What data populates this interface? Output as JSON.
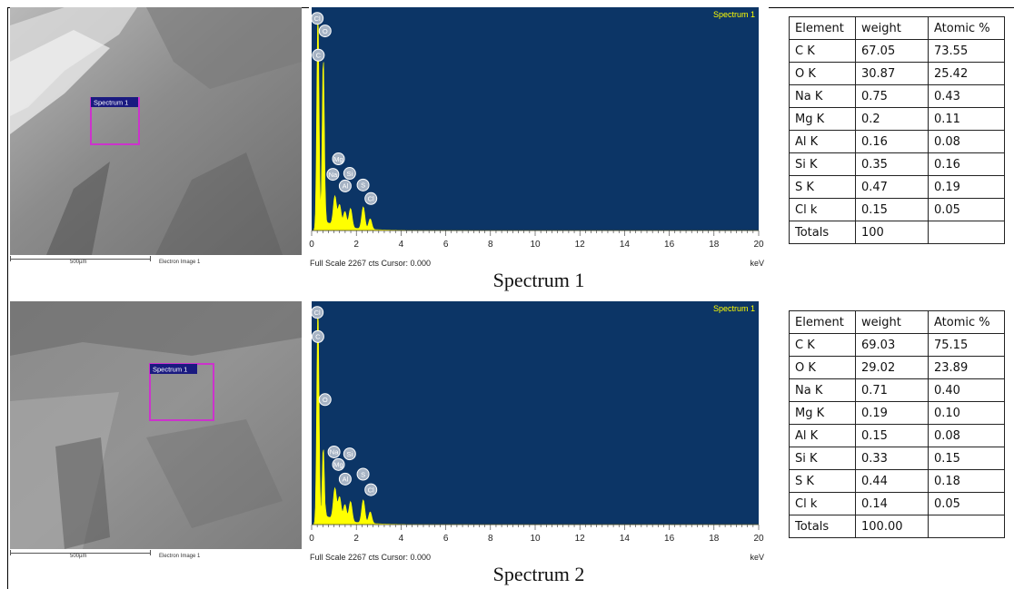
{
  "panels": [
    {
      "title": "Spectrum 1",
      "sem": {
        "region_label": "Spectrum 1",
        "scale_label": "500µm",
        "image_label": "Electron Image 1"
      },
      "spectrum_header": "Spectrum 1",
      "footer_left": "Full Scale 2267 cts Cursor: 0.000",
      "footer_unit": "keV",
      "table": {
        "headers": [
          "Element",
          "weight",
          "Atomic %"
        ],
        "rows": [
          [
            "C K",
            "67.05",
            "73.55"
          ],
          [
            "O K",
            "30.87",
            "25.42"
          ],
          [
            "Na K",
            "0.75",
            "0.43"
          ],
          [
            "Mg K",
            "0.2",
            "0.11"
          ],
          [
            "Al K",
            "0.16",
            "0.08"
          ],
          [
            "Si K",
            "0.35",
            "0.16"
          ],
          [
            "S K",
            "0.47",
            "0.19"
          ],
          [
            "Cl k",
            "0.15",
            "0.05"
          ],
          [
            "Totals",
            "100",
            ""
          ]
        ]
      }
    },
    {
      "title": "Spectrum 2",
      "sem": {
        "region_label": "Spectrum 1",
        "scale_label": "500µm",
        "image_label": "Electron Image 1"
      },
      "spectrum_header": "Spectrum 1",
      "footer_left": "Full Scale 2267 cts Cursor: 0.000",
      "footer_unit": "keV",
      "table": {
        "headers": [
          "Element",
          "weight",
          "Atomic %"
        ],
        "rows": [
          [
            "C K",
            "69.03",
            "75.15"
          ],
          [
            "O K",
            "29.02",
            "23.89"
          ],
          [
            "Na K",
            "0.71",
            "0.40"
          ],
          [
            "Mg K",
            "0.19",
            "0.10"
          ],
          [
            "Al K",
            "0.15",
            "0.08"
          ],
          [
            "Si K",
            "0.33",
            "0.15"
          ],
          [
            "S K",
            "0.44",
            "0.18"
          ],
          [
            "Cl k",
            "0.14",
            "0.05"
          ],
          [
            "Totals",
            "100.00",
            ""
          ]
        ]
      }
    }
  ],
  "chart_data": [
    {
      "type": "area",
      "title": "Spectrum 1",
      "xlabel": "keV",
      "xlim": [
        0,
        20
      ],
      "ylim": [
        0,
        2267
      ],
      "x_ticks": [
        0,
        2,
        4,
        6,
        8,
        10,
        12,
        14,
        16,
        18,
        20
      ],
      "colors": {
        "background": "#0c3566",
        "fill": "#ffff00",
        "label_circle": "#a6b3c4"
      },
      "peaks": [
        {
          "x": 0.28,
          "y": 2267
        },
        {
          "x": 0.52,
          "y": 1800
        },
        {
          "x": 1.04,
          "y": 300
        },
        {
          "x": 1.25,
          "y": 220
        },
        {
          "x": 1.49,
          "y": 160
        },
        {
          "x": 1.74,
          "y": 200
        },
        {
          "x": 2.31,
          "y": 230
        },
        {
          "x": 2.62,
          "y": 110
        }
      ],
      "peak_labels": [
        {
          "text": "Cl",
          "x": 0.25,
          "y": 2190
        },
        {
          "text": "O",
          "x": 0.6,
          "y": 2060
        },
        {
          "text": "C",
          "x": 0.3,
          "y": 1810
        },
        {
          "text": "Mg",
          "x": 1.2,
          "y": 740
        },
        {
          "text": "Na",
          "x": 0.95,
          "y": 580
        },
        {
          "text": "Si",
          "x": 1.7,
          "y": 590
        },
        {
          "text": "Al",
          "x": 1.5,
          "y": 460
        },
        {
          "text": "S",
          "x": 2.3,
          "y": 470
        },
        {
          "text": "Cl",
          "x": 2.65,
          "y": 330
        }
      ]
    },
    {
      "type": "area",
      "title": "Spectrum 1",
      "xlabel": "keV",
      "xlim": [
        0,
        20
      ],
      "ylim": [
        0,
        2267
      ],
      "x_ticks": [
        0,
        2,
        4,
        6,
        8,
        10,
        12,
        14,
        16,
        18,
        20
      ],
      "colors": {
        "background": "#0c3566",
        "fill": "#ffff00",
        "label_circle": "#a6b3c4"
      },
      "peaks": [
        {
          "x": 0.28,
          "y": 2267
        },
        {
          "x": 0.52,
          "y": 800
        },
        {
          "x": 1.04,
          "y": 320
        },
        {
          "x": 1.25,
          "y": 240
        },
        {
          "x": 1.49,
          "y": 170
        },
        {
          "x": 1.74,
          "y": 210
        },
        {
          "x": 2.31,
          "y": 240
        },
        {
          "x": 2.62,
          "y": 120
        }
      ],
      "peak_labels": [
        {
          "text": "Cl",
          "x": 0.25,
          "y": 2190
        },
        {
          "text": "C",
          "x": 0.28,
          "y": 1940
        },
        {
          "text": "O",
          "x": 0.6,
          "y": 1290
        },
        {
          "text": "Na",
          "x": 1.0,
          "y": 750
        },
        {
          "text": "Si",
          "x": 1.7,
          "y": 730
        },
        {
          "text": "Mg",
          "x": 1.2,
          "y": 620
        },
        {
          "text": "Al",
          "x": 1.5,
          "y": 470
        },
        {
          "text": "S",
          "x": 2.3,
          "y": 520
        },
        {
          "text": "Cl",
          "x": 2.65,
          "y": 360
        }
      ]
    }
  ]
}
